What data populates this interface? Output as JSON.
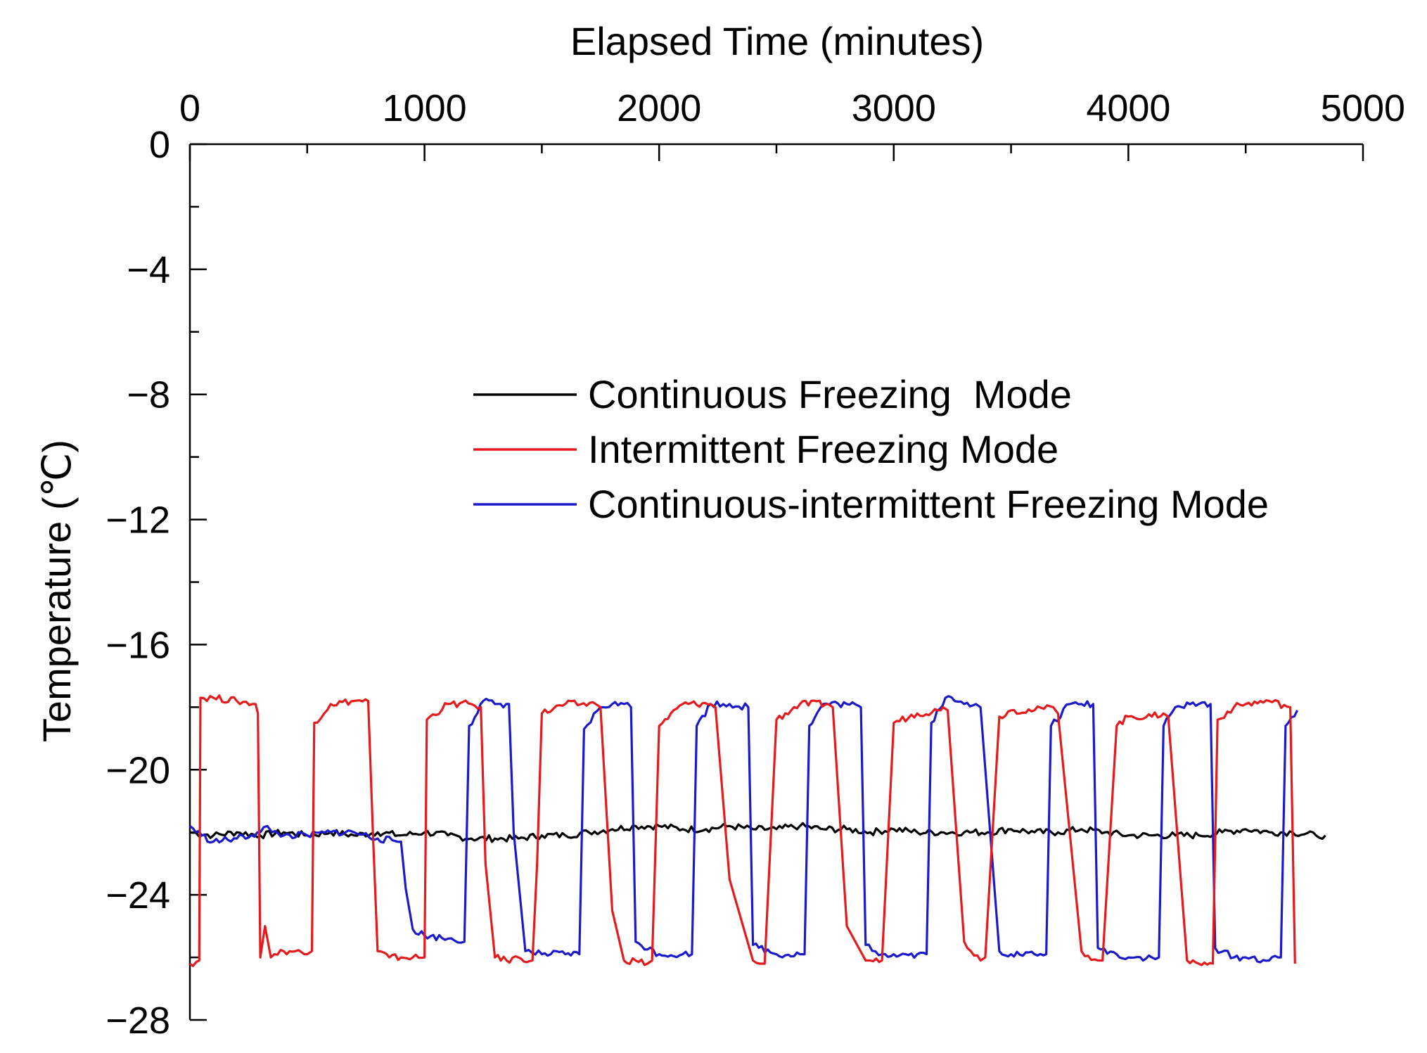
{
  "chart_data": {
    "type": "line",
    "title": "",
    "xlabel": "Elapsed Time (minutes)",
    "ylabel": "Temperature (℃)",
    "xlim": [
      0,
      5000
    ],
    "ylim": [
      -28,
      0
    ],
    "x_axis_position": "top",
    "x_major_ticks": [
      0,
      1000,
      2000,
      3000,
      4000,
      5000
    ],
    "x_tick_labels": [
      "0",
      "1000",
      "2000",
      "3000",
      "4000",
      "5000"
    ],
    "x_minor_ticks": [
      500,
      1500,
      2500,
      3500,
      4500
    ],
    "y_major_ticks": [
      0,
      -4,
      -8,
      -12,
      -16,
      -20,
      -24,
      -28
    ],
    "y_tick_labels": [
      "0",
      "−4",
      "−8",
      "−12",
      "−16",
      "−20",
      "−24",
      "−28"
    ],
    "y_minor_ticks": [
      -2,
      -6,
      -10,
      -14,
      -18,
      -22,
      -26
    ],
    "legend_position": "center-right",
    "grid": false,
    "series": [
      {
        "name": "Continuous Freezing  Mode",
        "color": "#000000",
        "x": [
          0,
          100,
          200,
          300,
          400,
          500,
          600,
          700,
          800,
          900,
          1000,
          1100,
          1200,
          1300,
          1400,
          1500,
          1600,
          1700,
          1800,
          1900,
          2000,
          2100,
          2200,
          2300,
          2400,
          2500,
          2600,
          2700,
          2800,
          2900,
          3000,
          3100,
          3200,
          3300,
          3400,
          3500,
          3600,
          3700,
          3800,
          3900,
          4000,
          4100,
          4200,
          4300,
          4400,
          4500,
          4600,
          4700,
          4800,
          4840
        ],
        "y": [
          -22.0,
          -22.1,
          -22.0,
          -22.1,
          -22.0,
          -22.1,
          -22.0,
          -22.1,
          -22.0,
          -22.1,
          -22.0,
          -22.1,
          -22.2,
          -22.2,
          -22.2,
          -22.1,
          -22.1,
          -22.0,
          -21.9,
          -21.8,
          -21.8,
          -21.9,
          -21.9,
          -21.8,
          -21.9,
          -21.9,
          -21.8,
          -21.9,
          -21.9,
          -22.0,
          -21.9,
          -22.0,
          -22.0,
          -22.0,
          -22.0,
          -21.9,
          -22.0,
          -22.0,
          -21.9,
          -22.0,
          -22.1,
          -22.1,
          -22.1,
          -22.1,
          -22.0,
          -21.9,
          -22.0,
          -22.0,
          -22.1,
          -22.1
        ]
      },
      {
        "name": "Intermittent Freezing Mode",
        "color": "#e41a1c",
        "x": [
          0,
          40,
          45,
          100,
          200,
          280,
          290,
          300,
          320,
          345,
          360,
          400,
          450,
          500,
          520,
          530,
          600,
          700,
          760,
          780,
          800,
          850,
          900,
          950,
          1000,
          1010,
          1100,
          1200,
          1240,
          1260,
          1300,
          1350,
          1400,
          1460,
          1480,
          1500,
          1600,
          1730,
          1750,
          1800,
          1850,
          1900,
          1950,
          1970,
          2000,
          2100,
          2220,
          2240,
          2300,
          2400,
          2430,
          2450,
          2500,
          2600,
          2720,
          2740,
          2800,
          2880,
          2900,
          2950,
          3000,
          3100,
          3200,
          3210,
          3230,
          3300,
          3370,
          3390,
          3450,
          3500,
          3600,
          3680,
          3700,
          3800,
          3870,
          3890,
          3950,
          4000,
          4100,
          4150,
          4170,
          4250,
          4300,
          4360,
          4380,
          4450,
          4500,
          4600,
          4690,
          4710
        ],
        "y": [
          -26.2,
          -26.1,
          -17.7,
          -17.7,
          -17.8,
          -17.9,
          -18.2,
          -26.0,
          -25.0,
          -26.0,
          -25.9,
          -25.8,
          -25.8,
          -25.9,
          -25.8,
          -18.5,
          -17.9,
          -17.8,
          -17.8,
          -22.0,
          -25.8,
          -26.0,
          -26.0,
          -26.0,
          -26.0,
          -18.4,
          -17.9,
          -17.9,
          -18.0,
          -23.0,
          -26.0,
          -26.1,
          -26.0,
          -26.1,
          -23.0,
          -18.2,
          -17.9,
          -17.9,
          -18.0,
          -24.5,
          -26.1,
          -26.1,
          -26.2,
          -26.1,
          -18.6,
          -17.9,
          -17.9,
          -18.0,
          -23.5,
          -26.1,
          -26.2,
          -26.2,
          -18.4,
          -17.9,
          -17.9,
          -18.0,
          -25.0,
          -26.1,
          -26.1,
          -26.1,
          -18.5,
          -18.2,
          -18.1,
          -18.0,
          -18.1,
          -25.5,
          -26.1,
          -26.0,
          -18.3,
          -18.1,
          -18.1,
          -18.0,
          -18.2,
          -25.8,
          -26.1,
          -26.1,
          -18.6,
          -18.3,
          -18.3,
          -18.2,
          -18.3,
          -26.1,
          -26.2,
          -26.2,
          -18.4,
          -18.0,
          -17.9,
          -17.8,
          -18.0,
          -26.2
        ]
      },
      {
        "name": "Continuous-intermittent Freezing Mode",
        "color": "#1a1acc",
        "x": [
          0,
          50,
          100,
          200,
          300,
          330,
          350,
          400,
          500,
          600,
          700,
          800,
          900,
          920,
          950,
          1000,
          1100,
          1170,
          1190,
          1250,
          1300,
          1360,
          1380,
          1430,
          1500,
          1600,
          1660,
          1680,
          1750,
          1800,
          1850,
          1880,
          1900,
          2000,
          2100,
          2140,
          2160,
          2220,
          2300,
          2380,
          2400,
          2500,
          2600,
          2620,
          2640,
          2700,
          2800,
          2860,
          2880,
          2950,
          3000,
          3100,
          3140,
          3160,
          3220,
          3300,
          3350,
          3370,
          3450,
          3500,
          3600,
          3650,
          3670,
          3750,
          3800,
          3850,
          3870,
          3950,
          4000,
          4100,
          4130,
          4150,
          4200,
          4300,
          4350,
          4370,
          4450,
          4500,
          4600,
          4650,
          4670,
          4720
        ],
        "y": [
          -21.8,
          -22.1,
          -22.3,
          -22.2,
          -22.0,
          -21.8,
          -22.0,
          -22.1,
          -22.1,
          -22.0,
          -22.0,
          -22.2,
          -22.3,
          -23.8,
          -25.1,
          -25.3,
          -25.4,
          -25.5,
          -18.6,
          -17.8,
          -17.9,
          -17.9,
          -22.0,
          -25.8,
          -25.9,
          -25.9,
          -25.9,
          -18.7,
          -18.0,
          -17.9,
          -17.9,
          -18.0,
          -25.5,
          -25.9,
          -25.9,
          -25.9,
          -18.6,
          -17.9,
          -17.9,
          -18.0,
          -25.6,
          -25.9,
          -25.9,
          -25.9,
          -18.6,
          -17.9,
          -17.9,
          -18.0,
          -25.6,
          -25.9,
          -25.9,
          -25.9,
          -25.9,
          -18.5,
          -17.7,
          -17.9,
          -17.9,
          -18.0,
          -25.8,
          -25.9,
          -25.9,
          -25.9,
          -18.6,
          -17.9,
          -17.9,
          -17.9,
          -25.7,
          -25.9,
          -26.0,
          -26.0,
          -26.0,
          -18.6,
          -18.0,
          -17.9,
          -17.9,
          -25.7,
          -26.0,
          -26.0,
          -26.1,
          -26.0,
          -18.6,
          -18.1
        ]
      }
    ]
  }
}
